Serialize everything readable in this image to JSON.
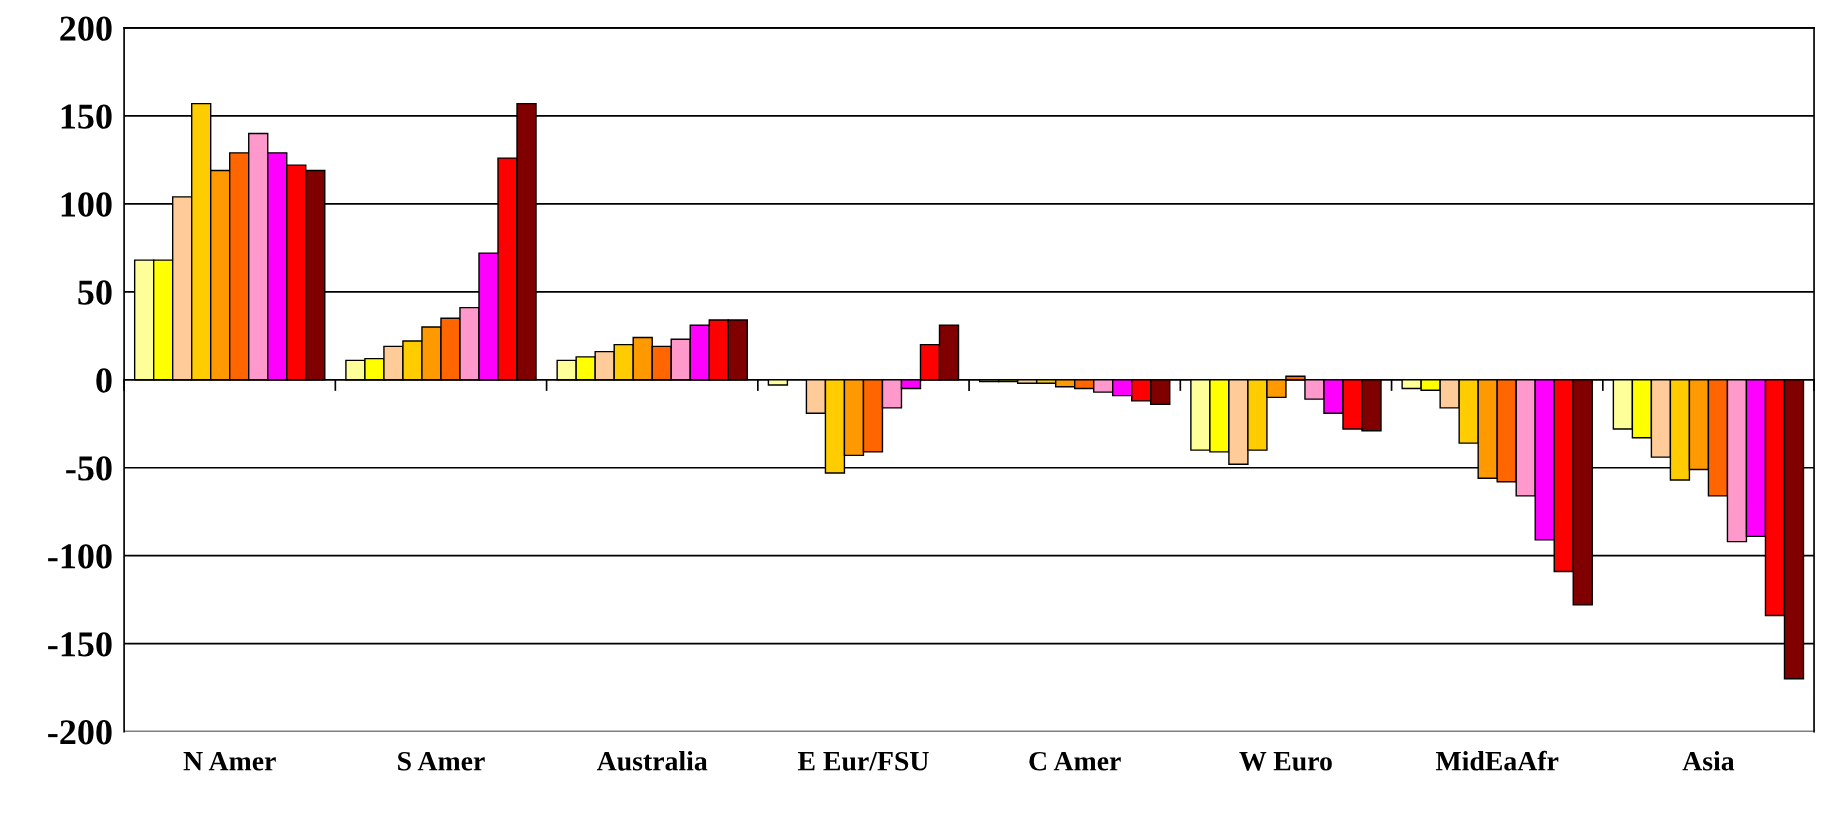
{
  "chart_data": {
    "type": "bar",
    "categories": [
      "N Amer",
      "S Amer",
      "Australia",
      "E Eur/FSU",
      "C Amer",
      "W Euro",
      "MidEaAfr",
      "Asia"
    ],
    "series": [
      {
        "color": "#ffff99",
        "values": [
          68,
          11,
          11,
          -3,
          -1,
          -40,
          -5,
          -28
        ]
      },
      {
        "color": "#ffff00",
        "values": [
          68,
          12,
          13,
          null,
          -1,
          -41,
          -6,
          -33
        ]
      },
      {
        "color": "#ffcc99",
        "values": [
          104,
          19,
          16,
          -19,
          -2,
          -48,
          -16,
          -44
        ]
      },
      {
        "color": "#ffcc00",
        "values": [
          157,
          22,
          20,
          -53,
          -2,
          -40,
          -36,
          -57
        ]
      },
      {
        "color": "#ff9900",
        "values": [
          119,
          30,
          24,
          -43,
          -4,
          -10,
          -56,
          -51
        ]
      },
      {
        "color": "#ff6600",
        "values": [
          129,
          35,
          19,
          -41,
          -5,
          2,
          -58,
          -66
        ]
      },
      {
        "color": "#ff99cc",
        "values": [
          140,
          41,
          23,
          -16,
          -7,
          -11,
          -66,
          -92
        ]
      },
      {
        "color": "#ff00ff",
        "values": [
          129,
          72,
          31,
          -5,
          -9,
          -19,
          -91,
          -89
        ]
      },
      {
        "color": "#ff0000",
        "values": [
          122,
          126,
          34,
          20,
          -12,
          -28,
          -109,
          -134
        ]
      },
      {
        "color": "#800000",
        "values": [
          119,
          157,
          34,
          31,
          -14,
          -29,
          -128,
          -170
        ]
      }
    ],
    "ylim": [
      -200,
      200
    ],
    "yticks": [
      -200,
      -150,
      -100,
      -50,
      0,
      50,
      100,
      150,
      200
    ],
    "grid": "y"
  }
}
